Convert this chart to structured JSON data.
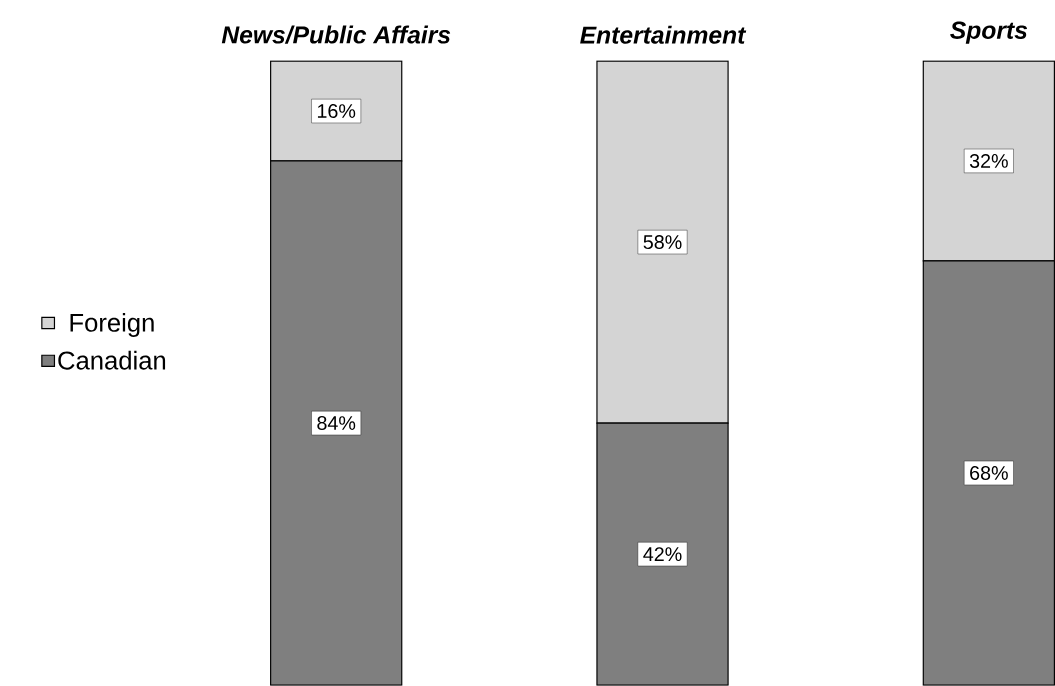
{
  "chart_data": {
    "type": "bar",
    "stacked": true,
    "categories": [
      "News/Public Affairs",
      "Entertainment",
      "Sports"
    ],
    "series": [
      {
        "name": "Canadian",
        "color": "#7f7f7f",
        "values": [
          84,
          42,
          68
        ],
        "value_labels": [
          "84%",
          "42%",
          "68%"
        ]
      },
      {
        "name": "Foreign",
        "color": "#d4d4d4",
        "values": [
          16,
          58,
          32
        ],
        "value_labels": [
          "16%",
          "58%",
          "32%"
        ]
      }
    ],
    "ylim": [
      0,
      100
    ],
    "tick_labels": "x",
    "legend": "left"
  }
}
